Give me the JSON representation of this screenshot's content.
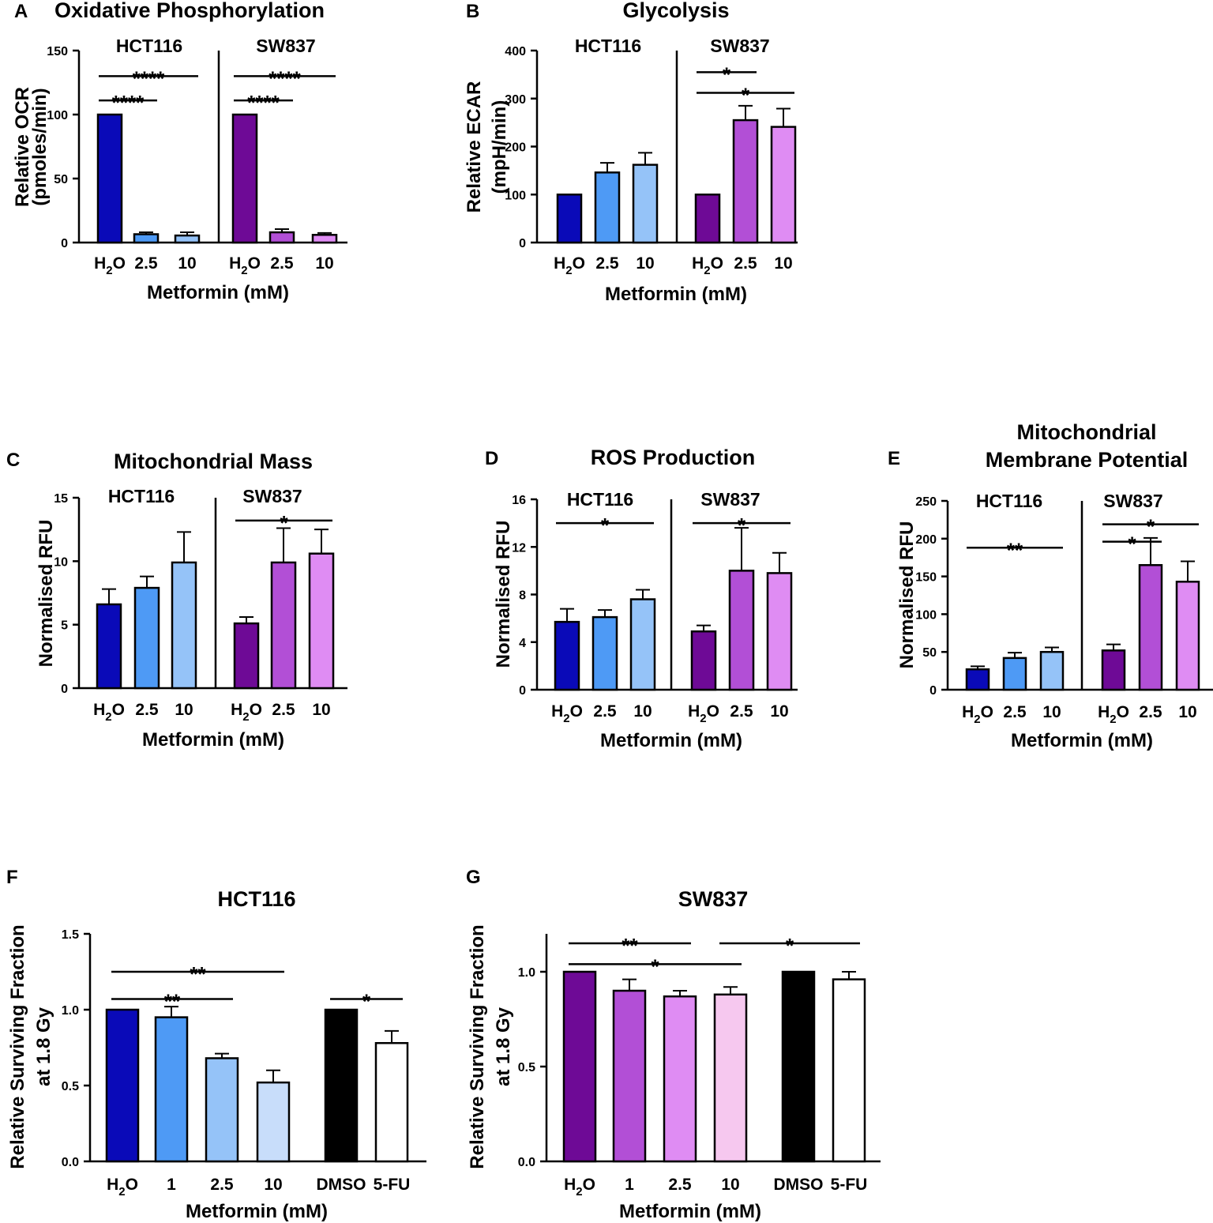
{
  "chart_data": [
    {
      "panel": "A",
      "type": "bar",
      "title": "Oxidative Phosphorylation",
      "ylabel": [
        "Relative OCR",
        "(pmoles/min)"
      ],
      "xlabel": "Metformin (mM)",
      "ylim": [
        0,
        150
      ],
      "yticks": [
        "0",
        "50",
        "100",
        "150"
      ],
      "groups": [
        {
          "name": "HCT116",
          "categories": [
            "H2O",
            "2.5",
            "10"
          ],
          "values": [
            100,
            6.5,
            5.5
          ],
          "errors": [
            0,
            1.5,
            2.5
          ],
          "colors": [
            "#0a0ab8",
            "#4e9af5",
            "#95c3f8"
          ]
        },
        {
          "name": "SW837",
          "categories": [
            "H2O",
            "2.5",
            "10"
          ],
          "values": [
            100,
            8,
            6
          ],
          "errors": [
            0,
            2.5,
            1.5
          ],
          "colors": [
            "#6e0a96",
            "#b24fd6",
            "#df8cf3"
          ]
        }
      ],
      "significance": [
        {
          "group": 0,
          "from": 0,
          "to": 2,
          "label": "****",
          "level": 130
        },
        {
          "group": 0,
          "from": 0,
          "to": 1,
          "label": "****",
          "level": 111
        },
        {
          "group": 1,
          "from": 0,
          "to": 2,
          "label": "****",
          "level": 130
        },
        {
          "group": 1,
          "from": 0,
          "to": 1,
          "label": "****",
          "level": 111
        }
      ]
    },
    {
      "panel": "B",
      "type": "bar",
      "title": "Glycolysis",
      "ylabel": [
        "Relative ECAR",
        "(mpH/min)"
      ],
      "xlabel": "Metformin (mM)",
      "ylim": [
        0,
        400
      ],
      "yticks": [
        "0",
        "100",
        "200",
        "300",
        "400"
      ],
      "groups": [
        {
          "name": "HCT116",
          "categories": [
            "H2O",
            "2.5",
            "10"
          ],
          "values": [
            100,
            146,
            162
          ],
          "errors": [
            0,
            20,
            25
          ],
          "colors": [
            "#0a0ab8",
            "#4e9af5",
            "#95c3f8"
          ]
        },
        {
          "name": "SW837",
          "categories": [
            "H2O",
            "2.5",
            "10"
          ],
          "values": [
            100,
            255,
            241
          ],
          "errors": [
            0,
            30,
            38
          ],
          "colors": [
            "#6e0a96",
            "#b24fd6",
            "#df8cf3"
          ]
        }
      ],
      "significance": [
        {
          "group": 1,
          "from": 0,
          "to": 1,
          "label": "*",
          "level": 355
        },
        {
          "group": 1,
          "from": 0,
          "to": 2,
          "label": "*",
          "level": 312
        }
      ]
    },
    {
      "panel": "C",
      "type": "bar",
      "title": "Mitochondrial Mass",
      "ylabel": [
        "Normalised RFU"
      ],
      "xlabel": "Metformin (mM)",
      "ylim": [
        0,
        15
      ],
      "yticks": [
        "0",
        "5",
        "10",
        "15"
      ],
      "groups": [
        {
          "name": "HCT116",
          "categories": [
            "H2O",
            "2.5",
            "10"
          ],
          "values": [
            6.6,
            7.9,
            9.9
          ],
          "errors": [
            1.2,
            0.9,
            2.4
          ],
          "colors": [
            "#0a0ab8",
            "#4e9af5",
            "#95c3f8"
          ]
        },
        {
          "name": "SW837",
          "categories": [
            "H2O",
            "2.5",
            "10"
          ],
          "values": [
            5.1,
            9.9,
            10.6
          ],
          "errors": [
            0.5,
            2.7,
            1.9
          ],
          "colors": [
            "#6e0a96",
            "#b24fd6",
            "#df8cf3"
          ]
        }
      ],
      "significance": [
        {
          "group": 1,
          "from": 0,
          "to": 2,
          "label": "*",
          "level": 13.2
        }
      ]
    },
    {
      "panel": "D",
      "type": "bar",
      "title": "ROS Production",
      "ylabel": [
        "Normalised RFU"
      ],
      "xlabel": "Metformin (mM)",
      "ylim": [
        0,
        16
      ],
      "yticks": [
        "0",
        "4",
        "8",
        "12",
        "16"
      ],
      "groups": [
        {
          "name": "HCT116",
          "categories": [
            "H2O",
            "2.5",
            "10"
          ],
          "values": [
            5.7,
            6.1,
            7.6
          ],
          "errors": [
            1.1,
            0.6,
            0.8
          ],
          "colors": [
            "#0a0ab8",
            "#4e9af5",
            "#95c3f8"
          ]
        },
        {
          "name": "SW837",
          "categories": [
            "H2O",
            "2.5",
            "10"
          ],
          "values": [
            4.9,
            10,
            9.8
          ],
          "errors": [
            0.5,
            3.6,
            1.7
          ],
          "colors": [
            "#6e0a96",
            "#b24fd6",
            "#df8cf3"
          ]
        }
      ],
      "significance": [
        {
          "group": 0,
          "from": 0,
          "to": 2,
          "label": "*",
          "level": 14
        },
        {
          "group": 1,
          "from": 0,
          "to": 2,
          "label": "*",
          "level": 14
        }
      ]
    },
    {
      "panel": "E",
      "type": "bar",
      "title": [
        "Mitochondrial",
        "Membrane Potential"
      ],
      "ylabel": [
        "Normalised RFU"
      ],
      "xlabel": "Metformin (mM)",
      "ylim": [
        0,
        250
      ],
      "yticks": [
        "0",
        "50",
        "100",
        "150",
        "200",
        "250"
      ],
      "groups": [
        {
          "name": "HCT116",
          "categories": [
            "H2O",
            "2.5",
            "10"
          ],
          "values": [
            27,
            42,
            50
          ],
          "errors": [
            4,
            7,
            6
          ],
          "colors": [
            "#0a0ab8",
            "#4e9af5",
            "#95c3f8"
          ]
        },
        {
          "name": "SW837",
          "categories": [
            "H2O",
            "2.5",
            "10"
          ],
          "values": [
            52,
            165,
            143
          ],
          "errors": [
            8,
            36,
            27
          ],
          "colors": [
            "#6e0a96",
            "#b24fd6",
            "#df8cf3"
          ]
        }
      ],
      "significance": [
        {
          "group": 0,
          "from": 0,
          "to": 2,
          "label": "**",
          "level": 188
        },
        {
          "group": 1,
          "from": 0,
          "to": 1,
          "label": "*",
          "level": 196
        },
        {
          "group": 1,
          "from": 0,
          "to": 2,
          "label": "*",
          "level": 219
        }
      ]
    },
    {
      "panel": "F",
      "type": "bar",
      "title": "HCT116",
      "ylabel": [
        "Relative Surviving Fraction",
        "at 1.8 Gy"
      ],
      "xlabel": "Metformin (mM)",
      "ylim": [
        0,
        1.5
      ],
      "yticks": [
        "0.0",
        "0.5",
        "1.0",
        "1.5"
      ],
      "groups": [
        {
          "name": "",
          "categories": [
            "H2O",
            "1",
            "2.5",
            "10"
          ],
          "values": [
            1.0,
            0.95,
            0.68,
            0.52
          ],
          "errors": [
            0,
            0.07,
            0.03,
            0.08
          ],
          "colors": [
            "#0a0ab8",
            "#4e9af5",
            "#95c3f8",
            "#c8ddfa"
          ]
        },
        {
          "name": "",
          "categories": [
            "DMSO",
            "5-FU"
          ],
          "values": [
            1.0,
            0.78
          ],
          "errors": [
            0,
            0.08
          ],
          "colors": [
            "#000000",
            "#ffffff"
          ]
        }
      ],
      "significance": [
        {
          "group": 0,
          "from": 0,
          "to": 3,
          "label": "**",
          "level": 1.25
        },
        {
          "group": 0,
          "from": 0,
          "to": 2,
          "label": "**",
          "level": 1.07
        },
        {
          "group": 1,
          "from": 0,
          "to": 1,
          "label": "*",
          "level": 1.07
        }
      ]
    },
    {
      "panel": "G",
      "type": "bar",
      "title": "SW837",
      "ylabel": [
        "Relative Surviving Fraction",
        "at 1.8 Gy"
      ],
      "xlabel": "Metformin (mM)",
      "ylim": [
        0,
        1.2
      ],
      "yticks": [
        "0.0",
        "0.5",
        "1.0"
      ],
      "groups": [
        {
          "name": "",
          "categories": [
            "H2O",
            "1",
            "2.5",
            "10"
          ],
          "values": [
            1.0,
            0.9,
            0.87,
            0.88
          ],
          "errors": [
            0,
            0.06,
            0.03,
            0.04
          ],
          "colors": [
            "#6e0a96",
            "#b24fd6",
            "#df8cf3",
            "#f6c8ef"
          ]
        },
        {
          "name": "",
          "categories": [
            "DMSO",
            "5-FU"
          ],
          "values": [
            1.0,
            0.96
          ],
          "errors": [
            0,
            0.04
          ],
          "colors": [
            "#000000",
            "#ffffff"
          ]
        }
      ],
      "significance": [
        {
          "group": 0,
          "from": 0,
          "to": 2,
          "label": "**",
          "level": 1.15
        },
        {
          "group": 0,
          "from": 0,
          "to": 3,
          "label": "*",
          "level": 1.04
        },
        {
          "group": "between",
          "fromGroup": 0,
          "fromBar": 3,
          "toGroup": 1,
          "toBar": 1,
          "label": "*",
          "level": 1.15
        }
      ]
    }
  ]
}
